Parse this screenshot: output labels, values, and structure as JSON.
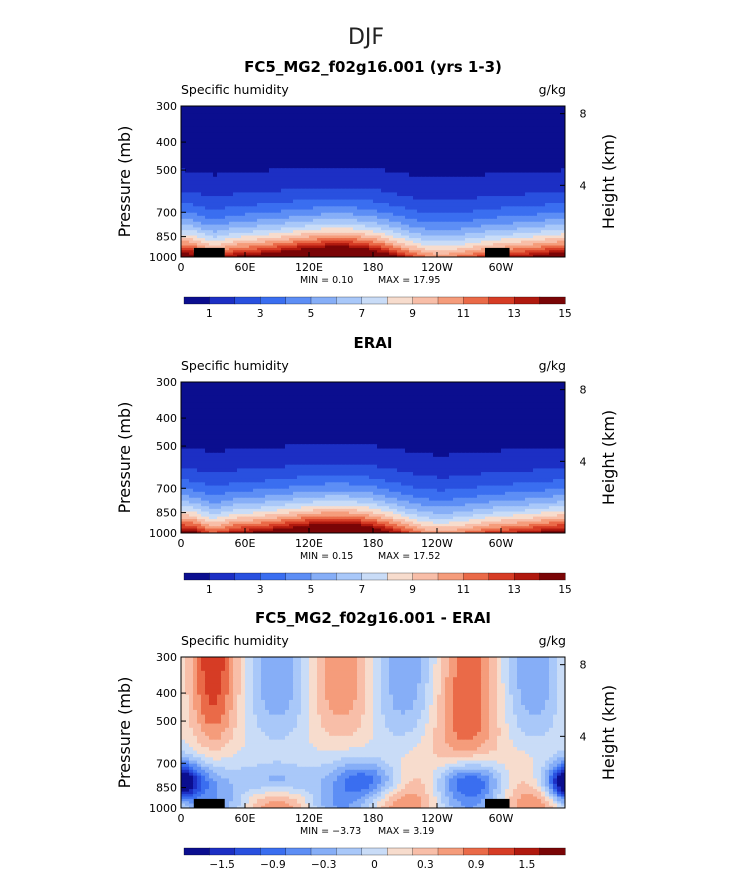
{
  "figure": {
    "suptitle": "DJF"
  },
  "chart_data": [
    {
      "type": "heatmap",
      "title": "FC5_MG2_f02g16.001 (yrs 1-3)",
      "left_label": "Specific humidity",
      "units": "g/kg",
      "ylabel": "Pressure (mb)",
      "y2label": "Height (km)",
      "x_ticks": [
        "0",
        "60E",
        "120E",
        "180",
        "120W",
        "60W"
      ],
      "x_tick_lon": [
        0,
        60,
        120,
        180,
        240,
        300
      ],
      "xlim": [
        0,
        360
      ],
      "y_ticks": [
        "300",
        "400",
        "500",
        "700",
        "850",
        "1000"
      ],
      "y_tick_p": [
        300,
        400,
        500,
        700,
        850,
        1000
      ],
      "ylim": [
        1000,
        300
      ],
      "y2_ticks": [
        "8",
        "4"
      ],
      "y2_tick_km": [
        8,
        4
      ],
      "min_text": "MIN =    0.10",
      "max_text": "MAX =   17.95",
      "field": "model",
      "topography": true,
      "colorbar": {
        "colors": [
          "#0b0e8f",
          "#1c2fc4",
          "#2950df",
          "#3a6ef0",
          "#5d8ef5",
          "#86aef7",
          "#a9c8f9",
          "#c9dcf7",
          "#f7dccd",
          "#f8bea8",
          "#f59c7b",
          "#ea6a48",
          "#d63c25",
          "#b0190e",
          "#7a0506"
        ],
        "labels": [
          "1",
          "3",
          "5",
          "7",
          "9",
          "11",
          "13",
          "15"
        ]
      }
    },
    {
      "type": "heatmap",
      "title": "ERAI",
      "left_label": "Specific humidity",
      "units": "g/kg",
      "ylabel": "Pressure (mb)",
      "y2label": "Height (km)",
      "x_ticks": [
        "0",
        "60E",
        "120E",
        "180",
        "120W",
        "60W"
      ],
      "x_tick_lon": [
        0,
        60,
        120,
        180,
        240,
        300
      ],
      "xlim": [
        0,
        360
      ],
      "y_ticks": [
        "300",
        "400",
        "500",
        "700",
        "850",
        "1000"
      ],
      "y_tick_p": [
        300,
        400,
        500,
        700,
        850,
        1000
      ],
      "ylim": [
        1000,
        300
      ],
      "y2_ticks": [
        "8",
        "4"
      ],
      "y2_tick_km": [
        8,
        4
      ],
      "min_text": "MIN =    0.15",
      "max_text": "MAX =   17.52",
      "field": "obs",
      "topography": false,
      "colorbar": {
        "colors": [
          "#0b0e8f",
          "#1c2fc4",
          "#2950df",
          "#3a6ef0",
          "#5d8ef5",
          "#86aef7",
          "#a9c8f9",
          "#c9dcf7",
          "#f7dccd",
          "#f8bea8",
          "#f59c7b",
          "#ea6a48",
          "#d63c25",
          "#b0190e",
          "#7a0506"
        ],
        "labels": [
          "1",
          "3",
          "5",
          "7",
          "9",
          "11",
          "13",
          "15"
        ]
      }
    },
    {
      "type": "heatmap",
      "title": "FC5_MG2_f02g16.001 - ERAI",
      "left_label": "Specific humidity",
      "units": "g/kg",
      "ylabel": "Pressure (mb)",
      "y2label": "Height (km)",
      "x_ticks": [
        "0",
        "60E",
        "120E",
        "180",
        "120W",
        "60W"
      ],
      "x_tick_lon": [
        0,
        60,
        120,
        180,
        240,
        300
      ],
      "xlim": [
        0,
        360
      ],
      "y_ticks": [
        "300",
        "400",
        "500",
        "700",
        "850",
        "1000"
      ],
      "y_tick_p": [
        300,
        400,
        500,
        700,
        850,
        1000
      ],
      "ylim": [
        1000,
        300
      ],
      "y2_ticks": [
        "8",
        "4"
      ],
      "y2_tick_km": [
        8,
        4
      ],
      "min_text": "MIN =  −3.73",
      "max_text": "MAX =    3.19",
      "field": "diff",
      "topography": true,
      "colorbar": {
        "colors": [
          "#0b0e8f",
          "#1c2fc4",
          "#2950df",
          "#3a6ef0",
          "#5d8ef5",
          "#86aef7",
          "#a9c8f9",
          "#c9dcf7",
          "#f7dccd",
          "#f8bea8",
          "#f59c7b",
          "#ea6a48",
          "#d63c25",
          "#b0190e",
          "#7a0506"
        ],
        "labels": [
          "−1.5",
          "−0.9",
          "−0.3",
          "0",
          "0.3",
          "0.9",
          "1.5"
        ]
      }
    }
  ]
}
